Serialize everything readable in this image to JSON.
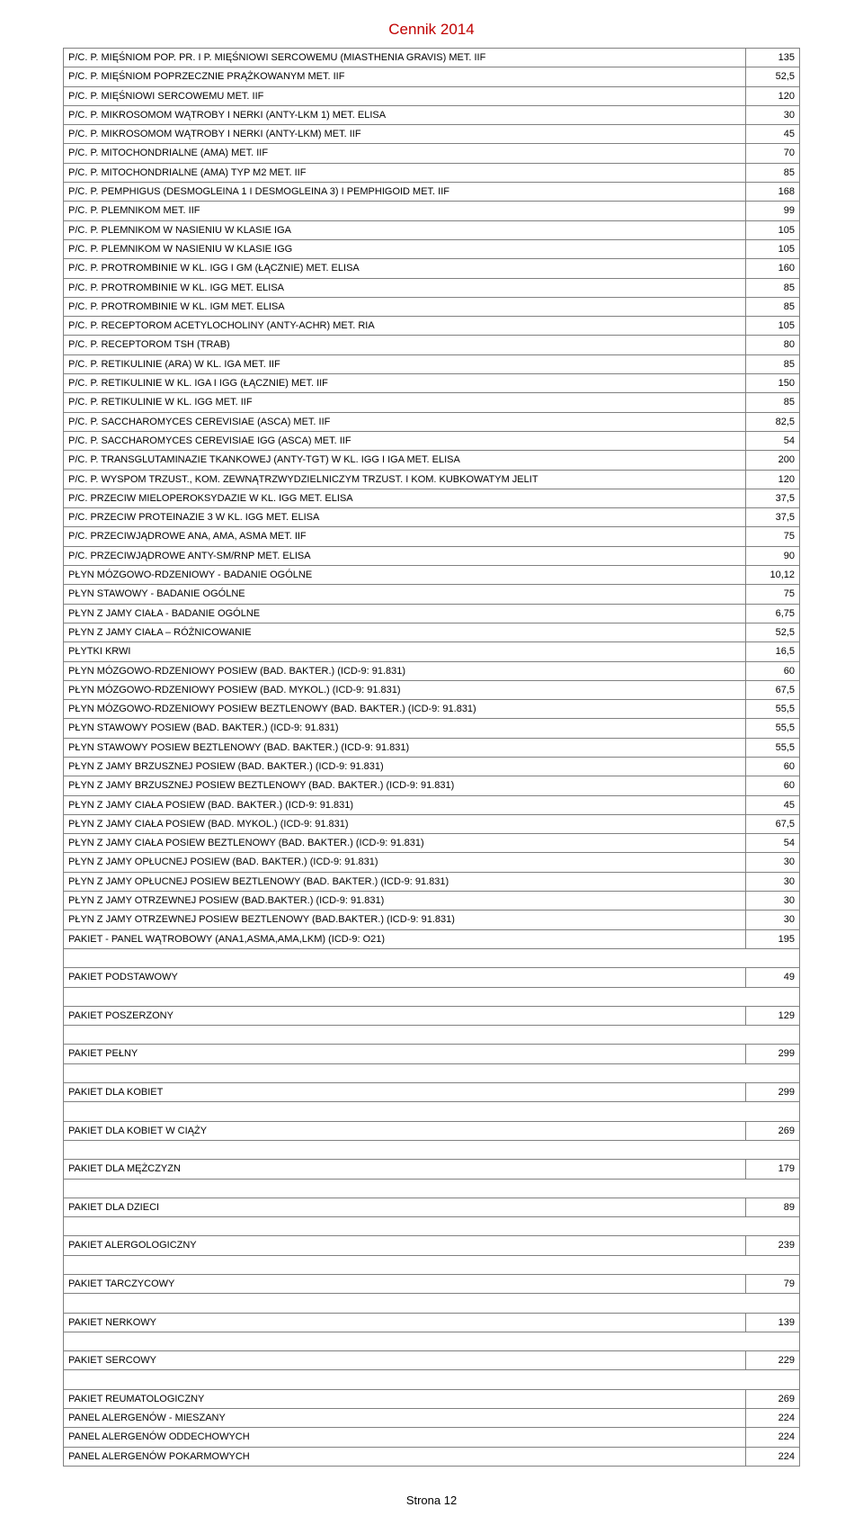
{
  "title": "Cennik 2014",
  "footer": "Strona 12",
  "colors": {
    "title": "#c00000",
    "border": "#808080",
    "text": "#000000",
    "background": "#ffffff"
  },
  "rows": [
    {
      "label": "P/C. P. MIĘŚNIOM POP. PR. I P. MIĘŚNIOWI SERCOWEMU (MIASTHENIA GRAVIS) MET. IIF",
      "value": "135"
    },
    {
      "label": "P/C. P. MIĘŚNIOM POPRZECZNIE PRĄŻKOWANYM MET. IIF",
      "value": "52,5"
    },
    {
      "label": "P/C. P. MIĘŚNIOWI SERCOWEMU MET. IIF",
      "value": "120"
    },
    {
      "label": "P/C. P. MIKROSOMOM WĄTROBY I NERKI (ANTY-LKM 1) MET. ELISA",
      "value": "30"
    },
    {
      "label": "P/C. P. MIKROSOMOM WĄTROBY I NERKI (ANTY-LKM) MET. IIF",
      "value": "45"
    },
    {
      "label": "P/C. P. MITOCHONDRIALNE (AMA) MET. IIF",
      "value": "70"
    },
    {
      "label": "P/C. P. MITOCHONDRIALNE (AMA) TYP M2 MET. IIF",
      "value": "85"
    },
    {
      "label": "P/C. P. PEMPHIGUS (DESMOGLEINA 1 I DESMOGLEINA 3) I PEMPHIGOID MET. IIF",
      "value": "168"
    },
    {
      "label": "P/C. P. PLEMNIKOM  MET. IIF",
      "value": "99"
    },
    {
      "label": "P/C. P. PLEMNIKOM W NASIENIU W KLASIE IGA",
      "value": "105"
    },
    {
      "label": "P/C. P. PLEMNIKOM W NASIENIU W KLASIE IGG",
      "value": "105"
    },
    {
      "label": "P/C. P. PROTROMBINIE W KL. IGG I GM (ŁĄCZNIE)  MET. ELISA",
      "value": "160"
    },
    {
      "label": "P/C. P. PROTROMBINIE W KL. IGG MET. ELISA",
      "value": "85"
    },
    {
      "label": "P/C. P. PROTROMBINIE W KL. IGM MET. ELISA",
      "value": "85"
    },
    {
      "label": "P/C. P. RECEPTOROM ACETYLOCHOLINY (ANTY-ACHR) MET. RIA",
      "value": "105"
    },
    {
      "label": "P/C. P. RECEPTOROM TSH (TRAB)",
      "value": "80"
    },
    {
      "label": "P/C. P. RETIKULINIE (ARA) W KL. IGA MET. IIF",
      "value": "85"
    },
    {
      "label": "P/C. P. RETIKULINIE W KL. IGA I IGG (ŁĄCZNIE)  MET. IIF",
      "value": "150"
    },
    {
      "label": "P/C. P. RETIKULINIE W KL. IGG MET. IIF",
      "value": "85"
    },
    {
      "label": "P/C. P. SACCHAROMYCES CEREVISIAE (ASCA) MET. IIF",
      "value": "82,5"
    },
    {
      "label": "P/C. P. SACCHAROMYCES CEREVISIAE IGG (ASCA) MET. IIF",
      "value": "54"
    },
    {
      "label": "P/C. P. TRANSGLUTAMINAZIE TKANKOWEJ (ANTY-TGT) W KL. IGG I  IGA MET. ELISA",
      "value": "200"
    },
    {
      "label": "P/C. P. WYSPOM TRZUST., KOM. ZEWNĄTRZWYDZIELNICZYM TRZUST. I KOM. KUBKOWATYM JELIT",
      "value": "120"
    },
    {
      "label": "P/C. PRZECIW MIELOPEROKSYDAZIE W KL. IGG MET. ELISA",
      "value": "37,5"
    },
    {
      "label": "P/C. PRZECIW PROTEINAZIE 3 W KL. IGG MET. ELISA",
      "value": "37,5"
    },
    {
      "label": "P/C. PRZECIWJĄDROWE ANA, AMA, ASMA MET. IIF",
      "value": "75"
    },
    {
      "label": "P/C. PRZECIWJĄDROWE ANTY-SM/RNP MET. ELISA",
      "value": "90"
    },
    {
      "label": "PŁYN MÓZGOWO-RDZENIOWY - BADANIE OGÓLNE",
      "value": "10,12"
    },
    {
      "label": "PŁYN STAWOWY - BADANIE OGÓLNE",
      "value": "75"
    },
    {
      "label": "PŁYN Z JAMY CIAŁA - BADANIE OGÓLNE",
      "value": "6,75"
    },
    {
      "label": "PŁYN Z JAMY CIAŁA – RÓŻNICOWANIE",
      "value": "52,5"
    },
    {
      "label": "PŁYTKI KRWI",
      "value": "16,5"
    },
    {
      "label": "PŁYN MÓZGOWO-RDZENIOWY POSIEW (BAD. BAKTER.) (ICD-9: 91.831)",
      "value": "60"
    },
    {
      "label": "PŁYN MÓZGOWO-RDZENIOWY POSIEW (BAD. MYKOL.) (ICD-9: 91.831)",
      "value": "67,5"
    },
    {
      "label": "PŁYN MÓZGOWO-RDZENIOWY POSIEW BEZTLENOWY (BAD. BAKTER.) (ICD-9: 91.831)",
      "value": "55,5"
    },
    {
      "label": "PŁYN STAWOWY POSIEW (BAD. BAKTER.) (ICD-9: 91.831)",
      "value": "55,5"
    },
    {
      "label": "PŁYN STAWOWY POSIEW BEZTLENOWY (BAD. BAKTER.) (ICD-9: 91.831)",
      "value": "55,5"
    },
    {
      "label": "PŁYN Z JAMY BRZUSZNEJ POSIEW (BAD. BAKTER.) (ICD-9: 91.831)",
      "value": "60"
    },
    {
      "label": "PŁYN Z JAMY BRZUSZNEJ POSIEW BEZTLENOWY (BAD. BAKTER.) (ICD-9: 91.831)",
      "value": "60"
    },
    {
      "label": "PŁYN Z JAMY CIAŁA POSIEW (BAD. BAKTER.) (ICD-9: 91.831)",
      "value": "45"
    },
    {
      "label": "PŁYN Z JAMY CIAŁA POSIEW (BAD. MYKOL.) (ICD-9: 91.831)",
      "value": "67,5"
    },
    {
      "label": "PŁYN Z JAMY CIAŁA POSIEW BEZTLENOWY (BAD. BAKTER.) (ICD-9: 91.831)",
      "value": "54"
    },
    {
      "label": "PŁYN Z JAMY OPŁUCNEJ POSIEW (BAD. BAKTER.) (ICD-9: 91.831)",
      "value": "30"
    },
    {
      "label": "PŁYN Z JAMY OPŁUCNEJ POSIEW BEZTLENOWY (BAD. BAKTER.) (ICD-9: 91.831)",
      "value": "30"
    },
    {
      "label": "PŁYN Z JAMY OTRZEWNEJ POSIEW (BAD.BAKTER.) (ICD-9: 91.831)",
      "value": "30"
    },
    {
      "label": "PŁYN Z JAMY OTRZEWNEJ POSIEW BEZTLENOWY (BAD.BAKTER.) (ICD-9: 91.831)",
      "value": "30"
    },
    {
      "label": "PAKIET - PANEL WĄTROBOWY (ANA1,ASMA,AMA,LKM) (ICD-9: O21)",
      "value": "195"
    },
    {
      "gap": true
    },
    {
      "label": "PAKIET PODSTAWOWY",
      "value": "49"
    },
    {
      "gap": true
    },
    {
      "label": "PAKIET POSZERZONY",
      "value": "129"
    },
    {
      "gap": true
    },
    {
      "label": "PAKIET PEŁNY",
      "value": "299"
    },
    {
      "gap": true
    },
    {
      "label": "PAKIET DLA KOBIET",
      "value": "299"
    },
    {
      "gap": true
    },
    {
      "label": "PAKIET DLA KOBIET W CIĄŻY",
      "value": "269"
    },
    {
      "gap": true
    },
    {
      "label": "PAKIET DLA MĘŻCZYZN",
      "value": "179"
    },
    {
      "gap": true
    },
    {
      "label": "PAKIET DLA DZIECI",
      "value": "89"
    },
    {
      "gap": true
    },
    {
      "label": "PAKIET ALERGOLOGICZNY",
      "value": "239"
    },
    {
      "gap": true
    },
    {
      "label": "PAKIET TARCZYCOWY",
      "value": "79"
    },
    {
      "gap": true
    },
    {
      "label": "PAKIET NERKOWY",
      "value": "139"
    },
    {
      "gap": true
    },
    {
      "label": "PAKIET SERCOWY",
      "value": "229"
    },
    {
      "gap": true
    },
    {
      "label": "PAKIET REUMATOLOGICZNY",
      "value": "269"
    },
    {
      "label": "PANEL ALERGENÓW - MIESZANY",
      "value": "224"
    },
    {
      "label": "PANEL ALERGENÓW ODDECHOWYCH",
      "value": "224"
    },
    {
      "label": "PANEL ALERGENÓW POKARMOWYCH",
      "value": "224"
    }
  ]
}
